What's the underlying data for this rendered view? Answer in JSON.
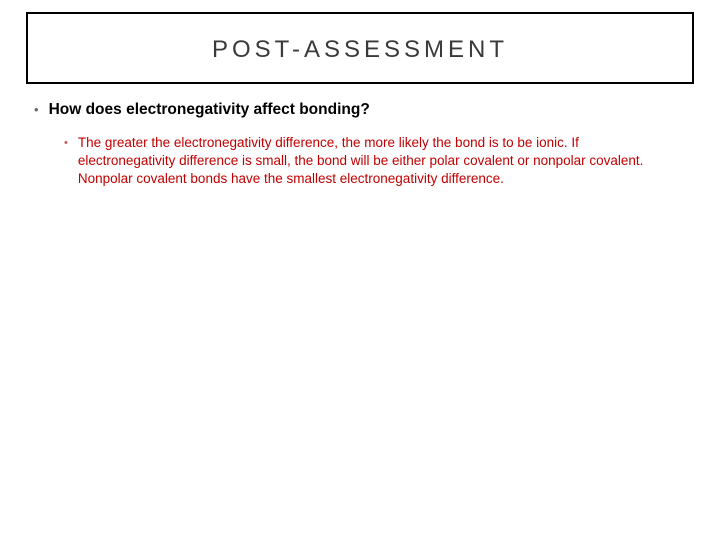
{
  "slide": {
    "title": "POST-ASSESSMENT",
    "title_color": "#3a3a3a",
    "title_fontsize": 24,
    "title_letter_spacing": 4,
    "border_color": "#000000",
    "background_color": "#ffffff"
  },
  "content": {
    "question_bullet_color": "#6a6a6a",
    "question": "How does electronegativity affect bonding?",
    "question_color": "#000000",
    "question_fontsize": 15.5,
    "question_fontweight": "bold",
    "answer_bullet_color": "#c45a5a",
    "answer": "The greater the electronegativity difference, the more likely the bond is to be ionic. If electronegativity difference is small, the bond will be either polar covalent or nonpolar covalent. Nonpolar covalent bonds have the smallest electronegativity difference.",
    "answer_color": "#c00000",
    "answer_fontsize": 13.5
  }
}
